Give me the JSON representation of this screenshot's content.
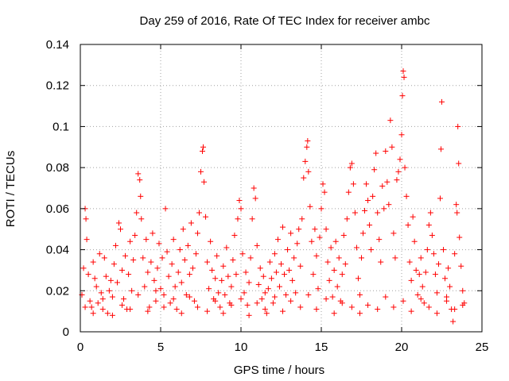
{
  "chart_data": {
    "type": "scatter",
    "title": "Day 259 of 2016, Rate Of TEC Index for receiver ambc",
    "xlabel": "GPS time / hours",
    "ylabel": "ROTI / TECUs",
    "xlim": [
      0,
      25
    ],
    "ylim": [
      0,
      0.14
    ],
    "xticks": [
      0,
      5,
      10,
      15,
      20,
      25
    ],
    "xtick_labels": [
      "0",
      "5",
      "10",
      "15",
      "20",
      "25"
    ],
    "yticks": [
      0,
      0.02,
      0.04,
      0.06,
      0.08,
      0.1,
      0.12,
      0.14
    ],
    "ytick_labels": [
      "0",
      "0.02",
      "0.04",
      "0.06",
      "0.08",
      "0.1",
      "0.12",
      "0.14"
    ],
    "grid": true,
    "marker": "+",
    "marker_color": "#ff0000",
    "series": [
      {
        "name": "ROTI",
        "points": [
          [
            0.1,
            0.018
          ],
          [
            0.2,
            0.031
          ],
          [
            0.3,
            0.06
          ],
          [
            0.35,
            0.055
          ],
          [
            0.4,
            0.045
          ],
          [
            0.5,
            0.028
          ],
          [
            0.6,
            0.015
          ],
          [
            0.7,
            0.012
          ],
          [
            0.8,
            0.034
          ],
          [
            0.9,
            0.026
          ],
          [
            1.0,
            0.022
          ],
          [
            1.1,
            0.014
          ],
          [
            1.2,
            0.038
          ],
          [
            1.3,
            0.019
          ],
          [
            1.4,
            0.011
          ],
          [
            1.5,
            0.036
          ],
          [
            1.6,
            0.027
          ],
          [
            1.7,
            0.009
          ],
          [
            1.8,
            0.02
          ],
          [
            1.9,
            0.025
          ],
          [
            2.0,
            0.017
          ],
          [
            2.1,
            0.033
          ],
          [
            2.2,
            0.042
          ],
          [
            2.3,
            0.024
          ],
          [
            2.4,
            0.053
          ],
          [
            2.5,
            0.05
          ],
          [
            2.6,
            0.03
          ],
          [
            2.7,
            0.016
          ],
          [
            2.8,
            0.037
          ],
          [
            2.9,
            0.011
          ],
          [
            3.0,
            0.028
          ],
          [
            3.1,
            0.044
          ],
          [
            3.2,
            0.02
          ],
          [
            3.3,
            0.035
          ],
          [
            3.4,
            0.047
          ],
          [
            3.5,
            0.058
          ],
          [
            3.6,
            0.077
          ],
          [
            3.7,
            0.074
          ],
          [
            3.75,
            0.066
          ],
          [
            3.8,
            0.055
          ],
          [
            3.9,
            0.036
          ],
          [
            4.0,
            0.022
          ],
          [
            4.1,
            0.045
          ],
          [
            4.2,
            0.029
          ],
          [
            4.3,
            0.012
          ],
          [
            4.4,
            0.034
          ],
          [
            4.5,
            0.048
          ],
          [
            4.6,
            0.025
          ],
          [
            4.7,
            0.015
          ],
          [
            4.8,
            0.031
          ],
          [
            4.9,
            0.043
          ],
          [
            5.0,
            0.021
          ],
          [
            5.1,
            0.036
          ],
          [
            5.2,
            0.018
          ],
          [
            5.3,
            0.06
          ],
          [
            5.4,
            0.039
          ],
          [
            5.5,
            0.027
          ],
          [
            5.6,
            0.014
          ],
          [
            5.7,
            0.033
          ],
          [
            5.8,
            0.045
          ],
          [
            5.9,
            0.022
          ],
          [
            6.0,
            0.011
          ],
          [
            6.1,
            0.029
          ],
          [
            6.2,
            0.04
          ],
          [
            6.3,
            0.024
          ],
          [
            6.4,
            0.05
          ],
          [
            6.5,
            0.035
          ],
          [
            6.6,
            0.018
          ],
          [
            6.7,
            0.042
          ],
          [
            6.8,
            0.028
          ],
          [
            6.9,
            0.053
          ],
          [
            7.0,
            0.031
          ],
          [
            7.1,
            0.015
          ],
          [
            7.2,
            0.038
          ],
          [
            7.3,
            0.048
          ],
          [
            7.4,
            0.058
          ],
          [
            7.5,
            0.078
          ],
          [
            7.6,
            0.088
          ],
          [
            7.65,
            0.09
          ],
          [
            7.7,
            0.073
          ],
          [
            7.8,
            0.056
          ],
          [
            7.9,
            0.034
          ],
          [
            8.0,
            0.021
          ],
          [
            8.1,
            0.044
          ],
          [
            8.2,
            0.03
          ],
          [
            8.3,
            0.016
          ],
          [
            8.4,
            0.026
          ],
          [
            8.5,
            0.037
          ],
          [
            8.6,
            0.019
          ],
          [
            8.7,
            0.012
          ],
          [
            8.8,
            0.025
          ],
          [
            8.9,
            0.032
          ],
          [
            9.0,
            0.018
          ],
          [
            9.1,
            0.041
          ],
          [
            9.2,
            0.027
          ],
          [
            9.3,
            0.014
          ],
          [
            9.4,
            0.022
          ],
          [
            9.5,
            0.035
          ],
          [
            9.6,
            0.047
          ],
          [
            9.7,
            0.028
          ],
          [
            9.8,
            0.055
          ],
          [
            9.9,
            0.064
          ],
          [
            10.0,
            0.06
          ],
          [
            10.1,
            0.038
          ],
          [
            10.2,
            0.019
          ],
          [
            10.3,
            0.029
          ],
          [
            10.4,
            0.013
          ],
          [
            10.5,
            0.024
          ],
          [
            10.6,
            0.036
          ],
          [
            10.7,
            0.055
          ],
          [
            10.8,
            0.07
          ],
          [
            10.9,
            0.065
          ],
          [
            11.0,
            0.042
          ],
          [
            11.1,
            0.023
          ],
          [
            11.2,
            0.031
          ],
          [
            11.3,
            0.016
          ],
          [
            11.4,
            0.027
          ],
          [
            11.5,
            0.019
          ],
          [
            11.6,
            0.009
          ],
          [
            11.7,
            0.021
          ],
          [
            11.8,
            0.034
          ],
          [
            11.9,
            0.026
          ],
          [
            12.0,
            0.014
          ],
          [
            12.1,
            0.038
          ],
          [
            12.2,
            0.029
          ],
          [
            12.3,
            0.045
          ],
          [
            12.4,
            0.022
          ],
          [
            12.5,
            0.033
          ],
          [
            12.6,
            0.051
          ],
          [
            12.7,
            0.028
          ],
          [
            12.8,
            0.018
          ],
          [
            12.9,
            0.04
          ],
          [
            13.0,
            0.03
          ],
          [
            13.1,
            0.048
          ],
          [
            13.2,
            0.025
          ],
          [
            13.3,
            0.036
          ],
          [
            13.4,
            0.019
          ],
          [
            13.5,
            0.043
          ],
          [
            13.6,
            0.05
          ],
          [
            13.7,
            0.032
          ],
          [
            13.8,
            0.055
          ],
          [
            13.9,
            0.075
          ],
          [
            14.0,
            0.083
          ],
          [
            14.1,
            0.09
          ],
          [
            14.15,
            0.093
          ],
          [
            14.2,
            0.078
          ],
          [
            14.3,
            0.061
          ],
          [
            14.4,
            0.044
          ],
          [
            14.5,
            0.028
          ],
          [
            14.6,
            0.05
          ],
          [
            14.7,
            0.037
          ],
          [
            14.8,
            0.021
          ],
          [
            14.9,
            0.046
          ],
          [
            15.0,
            0.06
          ],
          [
            15.1,
            0.072
          ],
          [
            15.2,
            0.068
          ],
          [
            15.3,
            0.05
          ],
          [
            15.4,
            0.034
          ],
          [
            15.5,
            0.025
          ],
          [
            15.6,
            0.041
          ],
          [
            15.7,
            0.017
          ],
          [
            15.8,
            0.03
          ],
          [
            15.9,
            0.044
          ],
          [
            16.0,
            0.022
          ],
          [
            16.1,
            0.036
          ],
          [
            16.2,
            0.015
          ],
          [
            16.3,
            0.028
          ],
          [
            16.4,
            0.047
          ],
          [
            16.5,
            0.033
          ],
          [
            16.6,
            0.055
          ],
          [
            16.7,
            0.068
          ],
          [
            16.8,
            0.08
          ],
          [
            16.9,
            0.082
          ],
          [
            17.0,
            0.072
          ],
          [
            17.1,
            0.058
          ],
          [
            17.2,
            0.041
          ],
          [
            17.3,
            0.026
          ],
          [
            17.4,
            0.009
          ],
          [
            17.5,
            0.036
          ],
          [
            17.6,
            0.048
          ],
          [
            17.7,
            0.059
          ],
          [
            17.8,
            0.072
          ],
          [
            17.9,
            0.064
          ],
          [
            18.0,
            0.052
          ],
          [
            18.1,
            0.04
          ],
          [
            18.2,
            0.066
          ],
          [
            18.3,
            0.079
          ],
          [
            18.4,
            0.087
          ],
          [
            18.5,
            0.058
          ],
          [
            18.6,
            0.045
          ],
          [
            18.7,
            0.034
          ],
          [
            18.8,
            0.071
          ],
          [
            18.9,
            0.06
          ],
          [
            19.0,
            0.088
          ],
          [
            19.1,
            0.073
          ],
          [
            19.2,
            0.062
          ],
          [
            19.3,
            0.103
          ],
          [
            19.4,
            0.09
          ],
          [
            19.5,
            0.048
          ],
          [
            19.6,
            0.036
          ],
          [
            19.7,
            0.074
          ],
          [
            19.8,
            0.078
          ],
          [
            19.9,
            0.084
          ],
          [
            20.0,
            0.096
          ],
          [
            20.05,
            0.115
          ],
          [
            20.1,
            0.127
          ],
          [
            20.15,
            0.124
          ],
          [
            20.2,
            0.08
          ],
          [
            20.3,
            0.066
          ],
          [
            20.4,
            0.052
          ],
          [
            20.5,
            0.034
          ],
          [
            20.6,
            0.025
          ],
          [
            20.7,
            0.056
          ],
          [
            20.8,
            0.044
          ],
          [
            20.9,
            0.03
          ],
          [
            21.0,
            0.018
          ],
          [
            21.1,
            0.028
          ],
          [
            21.2,
            0.036
          ],
          [
            21.3,
            0.022
          ],
          [
            21.4,
            0.014
          ],
          [
            21.5,
            0.029
          ],
          [
            21.6,
            0.04
          ],
          [
            21.7,
            0.052
          ],
          [
            21.8,
            0.058
          ],
          [
            21.9,
            0.047
          ],
          [
            22.0,
            0.038
          ],
          [
            22.1,
            0.028
          ],
          [
            22.2,
            0.019
          ],
          [
            22.3,
            0.033
          ],
          [
            22.4,
            0.065
          ],
          [
            22.45,
            0.089
          ],
          [
            22.5,
            0.112
          ],
          [
            22.6,
            0.04
          ],
          [
            22.7,
            0.026
          ],
          [
            22.8,
            0.015
          ],
          [
            22.9,
            0.031
          ],
          [
            23.0,
            0.022
          ],
          [
            23.1,
            0.011
          ],
          [
            23.2,
            0.005
          ],
          [
            23.3,
            0.038
          ],
          [
            23.4,
            0.062
          ],
          [
            23.45,
            0.058
          ],
          [
            23.5,
            0.1
          ],
          [
            23.55,
            0.082
          ],
          [
            23.6,
            0.046
          ],
          [
            23.7,
            0.032
          ],
          [
            23.8,
            0.02
          ],
          [
            23.9,
            0.014
          ],
          [
            0.3,
            0.012
          ],
          [
            0.8,
            0.009
          ],
          [
            1.4,
            0.016
          ],
          [
            2.0,
            0.008
          ],
          [
            2.6,
            0.013
          ],
          [
            3.1,
            0.011
          ],
          [
            3.6,
            0.018
          ],
          [
            4.2,
            0.01
          ],
          [
            4.7,
            0.02
          ],
          [
            5.2,
            0.012
          ],
          [
            5.8,
            0.016
          ],
          [
            6.3,
            0.009
          ],
          [
            6.8,
            0.017
          ],
          [
            7.3,
            0.012
          ],
          [
            7.9,
            0.01
          ],
          [
            8.4,
            0.015
          ],
          [
            8.9,
            0.009
          ],
          [
            9.4,
            0.013
          ],
          [
            10.0,
            0.016
          ],
          [
            10.5,
            0.008
          ],
          [
            11.0,
            0.014
          ],
          [
            11.5,
            0.011
          ],
          [
            12.1,
            0.017
          ],
          [
            12.6,
            0.01
          ],
          [
            13.1,
            0.015
          ],
          [
            13.7,
            0.012
          ],
          [
            14.2,
            0.018
          ],
          [
            14.7,
            0.011
          ],
          [
            15.3,
            0.016
          ],
          [
            15.8,
            0.009
          ],
          [
            16.3,
            0.014
          ],
          [
            16.9,
            0.012
          ],
          [
            17.4,
            0.018
          ],
          [
            17.9,
            0.013
          ],
          [
            18.5,
            0.011
          ],
          [
            19.0,
            0.017
          ],
          [
            19.5,
            0.012
          ],
          [
            20.1,
            0.015
          ],
          [
            20.6,
            0.01
          ],
          [
            21.2,
            0.016
          ],
          [
            21.7,
            0.012
          ],
          [
            22.2,
            0.009
          ],
          [
            22.8,
            0.017
          ],
          [
            23.3,
            0.011
          ],
          [
            23.8,
            0.013
          ]
        ]
      }
    ]
  }
}
